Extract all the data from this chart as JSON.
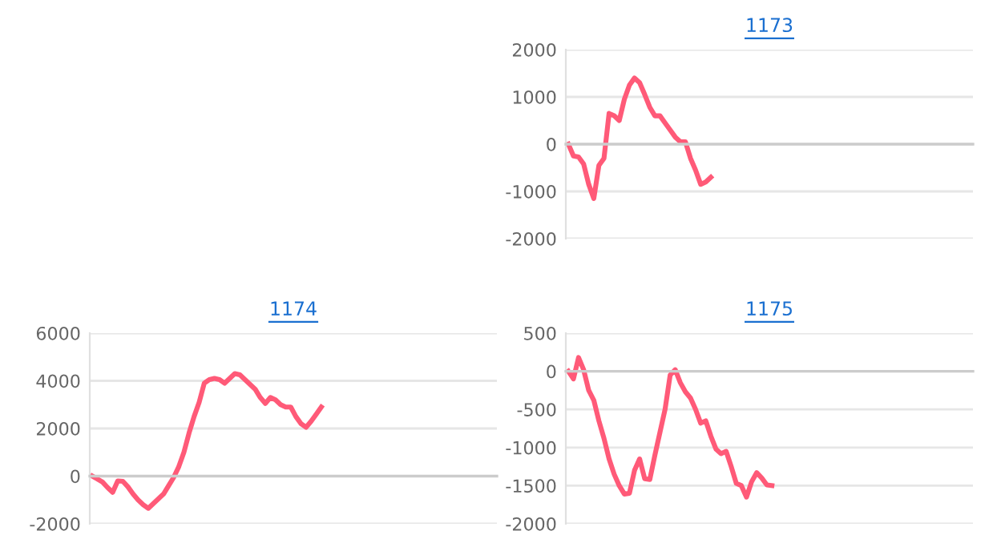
{
  "chart_data": [
    {
      "type": "line",
      "title": "1173",
      "categories": [
        null,
        null,
        null,
        null,
        null,
        null,
        null,
        null,
        null,
        null,
        null,
        null,
        null,
        null,
        null,
        null,
        null,
        null,
        null,
        null,
        null,
        null,
        null,
        null,
        null,
        null,
        null,
        null,
        null,
        null,
        null,
        null,
        null,
        null,
        null,
        null,
        null,
        null,
        null,
        null,
        null,
        null,
        null,
        null,
        null,
        null,
        null,
        null,
        null,
        null,
        null,
        null,
        null,
        null,
        null,
        null,
        null,
        null,
        null,
        null,
        null,
        null,
        null,
        null,
        null,
        null,
        null,
        null,
        null,
        null,
        null,
        null,
        null,
        null,
        null,
        null,
        null,
        null,
        null,
        null
      ],
      "series": [
        {
          "color": "#ff5a78",
          "values": [
            0,
            -250,
            -270,
            -420,
            -850,
            -1150,
            -450,
            -300,
            650,
            600,
            500,
            950,
            1250,
            1400,
            1300,
            1050,
            780,
            600,
            600,
            450,
            300,
            150,
            50,
            50,
            -300,
            -550,
            -850,
            -800,
            -700,
            null,
            null,
            null,
            null,
            null,
            null,
            null,
            null,
            null,
            null,
            null,
            null,
            null,
            null,
            null,
            null,
            null,
            null,
            null,
            null,
            null,
            null,
            null,
            null,
            null,
            null,
            null,
            null,
            null,
            null,
            null,
            null,
            null,
            null,
            null,
            null,
            null,
            null,
            null,
            null,
            null,
            null,
            null,
            null,
            null,
            null,
            null,
            null,
            null,
            null,
            null
          ]
        }
      ],
      "ylim": [
        -2000,
        2000
      ],
      "yticks": [
        -2000,
        -1000,
        0,
        1000,
        2000
      ],
      "grid": "y",
      "marker": "none",
      "line_style": "solid",
      "legend": false
    },
    {
      "type": "line",
      "title": "1174",
      "categories": [
        null,
        null,
        null,
        null,
        null,
        null,
        null,
        null,
        null,
        null,
        null,
        null,
        null,
        null,
        null,
        null,
        null,
        null,
        null,
        null,
        null,
        null,
        null,
        null,
        null,
        null,
        null,
        null,
        null,
        null,
        null,
        null,
        null,
        null,
        null,
        null,
        null,
        null,
        null,
        null,
        null,
        null,
        null,
        null,
        null,
        null,
        null,
        null,
        null,
        null,
        null,
        null,
        null,
        null,
        null,
        null,
        null,
        null,
        null,
        null,
        null,
        null,
        null,
        null,
        null,
        null,
        null,
        null,
        null,
        null,
        null,
        null,
        null,
        null,
        null,
        null,
        null,
        null,
        null,
        null
      ],
      "series": [
        {
          "color": "#ff5a78",
          "values": [
            0,
            -120,
            -250,
            -480,
            -680,
            -200,
            -220,
            -450,
            -750,
            -1000,
            -1200,
            -1350,
            -1150,
            -950,
            -750,
            -400,
            -50,
            400,
            1000,
            1800,
            2500,
            3100,
            3900,
            4050,
            4100,
            4050,
            3900,
            4100,
            4300,
            4250,
            4050,
            3850,
            3650,
            3300,
            3050,
            3300,
            3200,
            3000,
            2900,
            2900,
            2500,
            2200,
            2050,
            2300,
            2600,
            2900,
            null,
            null,
            null,
            null,
            null,
            null,
            null,
            null,
            null,
            null,
            null,
            null,
            null,
            null,
            null,
            null,
            null,
            null,
            null,
            null,
            null,
            null,
            null,
            null,
            null,
            null,
            null,
            null,
            null,
            null,
            null,
            null,
            null,
            null
          ]
        }
      ],
      "ylim": [
        -2000,
        6000
      ],
      "yticks": [
        -2000,
        0,
        2000,
        4000,
        6000
      ],
      "grid": "y",
      "marker": "none",
      "line_style": "solid",
      "legend": false
    },
    {
      "type": "line",
      "title": "1175",
      "categories": [
        null,
        null,
        null,
        null,
        null,
        null,
        null,
        null,
        null,
        null,
        null,
        null,
        null,
        null,
        null,
        null,
        null,
        null,
        null,
        null,
        null,
        null,
        null,
        null,
        null,
        null,
        null,
        null,
        null,
        null,
        null,
        null,
        null,
        null,
        null,
        null,
        null,
        null,
        null,
        null,
        null,
        null,
        null,
        null,
        null,
        null,
        null,
        null,
        null,
        null,
        null,
        null,
        null,
        null,
        null,
        null,
        null,
        null,
        null,
        null,
        null,
        null,
        null,
        null,
        null,
        null,
        null,
        null,
        null,
        null,
        null,
        null,
        null,
        null,
        null,
        null,
        null,
        null,
        null,
        null
      ],
      "series": [
        {
          "color": "#ff5a78",
          "values": [
            0,
            -100,
            180,
            20,
            -250,
            -380,
            -650,
            -880,
            -1150,
            -1350,
            -1500,
            -1610,
            -1600,
            -1300,
            -1150,
            -1410,
            -1420,
            -1100,
            -800,
            -500,
            -50,
            20,
            -150,
            -270,
            -350,
            -500,
            -680,
            -650,
            -850,
            -1020,
            -1080,
            -1050,
            -1250,
            -1470,
            -1500,
            -1650,
            -1450,
            -1330,
            -1400,
            -1490,
            -1500,
            null,
            null,
            null,
            null,
            null,
            null,
            null,
            null,
            null,
            null,
            null,
            null,
            null,
            null,
            null,
            null,
            null,
            null,
            null,
            null,
            null,
            null,
            null,
            null,
            null,
            null,
            null,
            null,
            null,
            null,
            null,
            null,
            null,
            null,
            null,
            null,
            null,
            null,
            null
          ]
        }
      ],
      "ylim": [
        -2000,
        500
      ],
      "yticks": [
        -2000,
        -1500,
        -1000,
        -500,
        0,
        500
      ],
      "grid": "y",
      "marker": "none",
      "line_style": "solid",
      "legend": false
    }
  ]
}
